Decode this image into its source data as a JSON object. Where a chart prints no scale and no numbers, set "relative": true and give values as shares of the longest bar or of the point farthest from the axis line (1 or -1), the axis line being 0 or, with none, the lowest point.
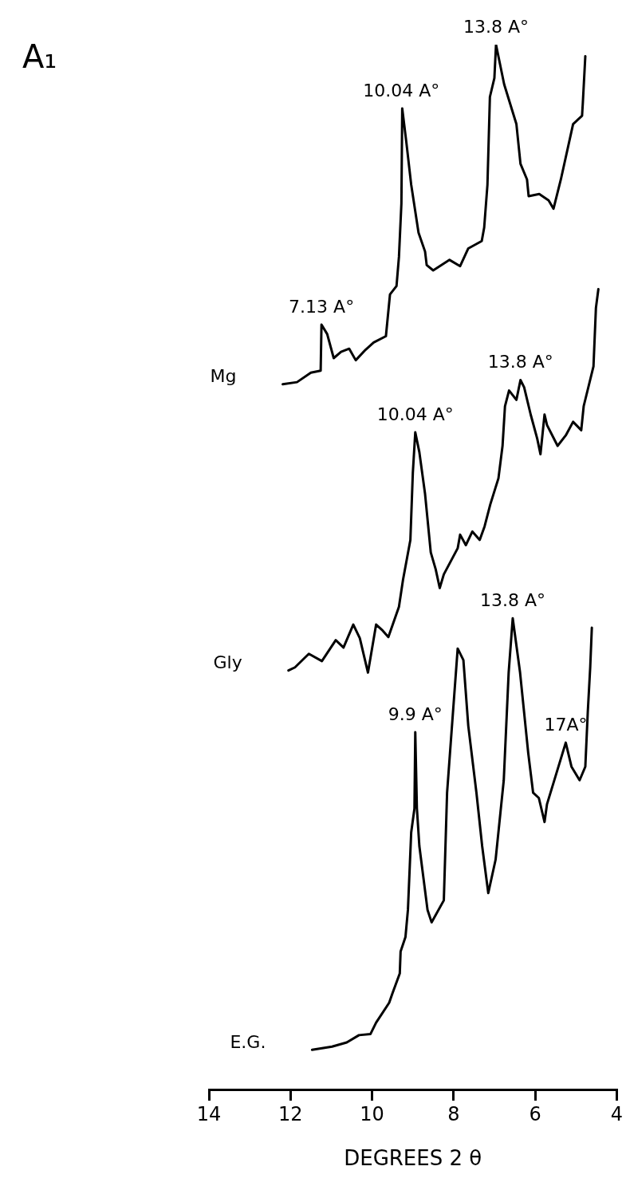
{
  "chart_data": {
    "type": "line",
    "title": "A₁",
    "xlabel": "DEGREES 2 θ",
    "relative": true,
    "xlim": [
      14,
      4
    ],
    "xticks": [
      14,
      12,
      10,
      8,
      6,
      4
    ],
    "grid": false,
    "legend": false,
    "series": [
      {
        "name": "Mg",
        "color": "#000000",
        "x": [
          12.19,
          11.84,
          11.5,
          11.26,
          11.24,
          11.1,
          10.94,
          10.76,
          10.56,
          10.4,
          10.16,
          9.96,
          9.66,
          9.56,
          9.4,
          9.34,
          9.28,
          9.26,
          9.16,
          9.04,
          8.86,
          8.7,
          8.66,
          8.5,
          8.1,
          7.84,
          7.64,
          7.31,
          7.25,
          7.17,
          7.11,
          7.0,
          6.96,
          6.76,
          6.46,
          6.36,
          6.2,
          6.16,
          5.9,
          5.67,
          5.55,
          5.37,
          5.07,
          4.85,
          4.83,
          4.77
        ],
        "values": [
          0.675,
          0.677,
          0.686,
          0.688,
          0.732,
          0.723,
          0.7,
          0.706,
          0.709,
          0.698,
          0.708,
          0.715,
          0.721,
          0.761,
          0.769,
          0.797,
          0.848,
          0.939,
          0.907,
          0.866,
          0.82,
          0.802,
          0.789,
          0.784,
          0.794,
          0.788,
          0.805,
          0.812,
          0.825,
          0.866,
          0.95,
          0.968,
          1.0,
          0.962,
          0.924,
          0.886,
          0.871,
          0.855,
          0.857,
          0.851,
          0.843,
          0.871,
          0.924,
          0.932,
          0.945,
          0.989
        ]
      },
      {
        "name": "Gly",
        "color": "#000000",
        "x": [
          12.05,
          11.89,
          11.55,
          11.23,
          10.89,
          10.7,
          10.46,
          10.3,
          10.1,
          9.9,
          9.76,
          9.6,
          9.34,
          9.24,
          9.06,
          9.0,
          8.94,
          8.84,
          8.7,
          8.56,
          8.44,
          8.34,
          8.24,
          7.9,
          7.84,
          7.7,
          7.54,
          7.36,
          7.24,
          7.1,
          6.9,
          6.8,
          6.74,
          6.64,
          6.46,
          6.36,
          6.27,
          6.11,
          5.95,
          5.87,
          5.77,
          5.71,
          5.45,
          5.25,
          5.07,
          4.87,
          4.81,
          4.57,
          4.51,
          4.45
        ],
        "values": [
          0.401,
          0.404,
          0.417,
          0.41,
          0.43,
          0.423,
          0.445,
          0.432,
          0.399,
          0.445,
          0.44,
          0.433,
          0.462,
          0.488,
          0.526,
          0.59,
          0.629,
          0.61,
          0.57,
          0.514,
          0.498,
          0.48,
          0.493,
          0.518,
          0.531,
          0.521,
          0.534,
          0.526,
          0.539,
          0.56,
          0.585,
          0.616,
          0.654,
          0.669,
          0.66,
          0.679,
          0.672,
          0.646,
          0.623,
          0.608,
          0.646,
          0.636,
          0.616,
          0.626,
          0.639,
          0.631,
          0.654,
          0.692,
          0.748,
          0.766
        ]
      },
      {
        "name": "E.G.",
        "color": "#000000",
        "x": [
          11.47,
          10.98,
          10.62,
          10.32,
          10.04,
          9.9,
          9.58,
          9.5,
          9.32,
          9.3,
          9.18,
          9.12,
          9.04,
          8.96,
          8.94,
          8.9,
          8.84,
          8.64,
          8.54,
          8.24,
          8.16,
          8.04,
          7.9,
          7.76,
          7.64,
          7.44,
          7.3,
          7.15,
          6.97,
          6.77,
          6.65,
          6.55,
          6.37,
          6.17,
          6.05,
          5.91,
          5.77,
          5.71,
          5.25,
          5.11,
          4.91,
          4.77,
          4.71,
          4.65,
          4.61
        ],
        "values": [
          0.038,
          0.041,
          0.045,
          0.052,
          0.053,
          0.064,
          0.083,
          0.092,
          0.111,
          0.132,
          0.146,
          0.172,
          0.246,
          0.269,
          0.342,
          0.269,
          0.233,
          0.172,
          0.16,
          0.181,
          0.284,
          0.348,
          0.422,
          0.411,
          0.348,
          0.284,
          0.233,
          0.188,
          0.22,
          0.296,
          0.399,
          0.451,
          0.399,
          0.322,
          0.284,
          0.279,
          0.256,
          0.273,
          0.332,
          0.309,
          0.296,
          0.309,
          0.361,
          0.404,
          0.442
        ]
      }
    ],
    "annotations": [
      {
        "text": "7.13 A°",
        "x": 11.24,
        "y": 0.732
      },
      {
        "text": "10.04 A°",
        "x": 9.28,
        "y": 0.939
      },
      {
        "text": "13.8 A°",
        "x": 6.96,
        "y": 1.0
      },
      {
        "text": "10.04 A°",
        "x": 8.94,
        "y": 0.629
      },
      {
        "text": "13.8 A°",
        "x": 6.36,
        "y": 0.679
      },
      {
        "text": "9.9 A°",
        "x": 8.94,
        "y": 0.342
      },
      {
        "text": "13.8 A°",
        "x": 6.55,
        "y": 0.451
      },
      {
        "text": "17A°",
        "x": 5.25,
        "y": 0.332
      }
    ]
  }
}
